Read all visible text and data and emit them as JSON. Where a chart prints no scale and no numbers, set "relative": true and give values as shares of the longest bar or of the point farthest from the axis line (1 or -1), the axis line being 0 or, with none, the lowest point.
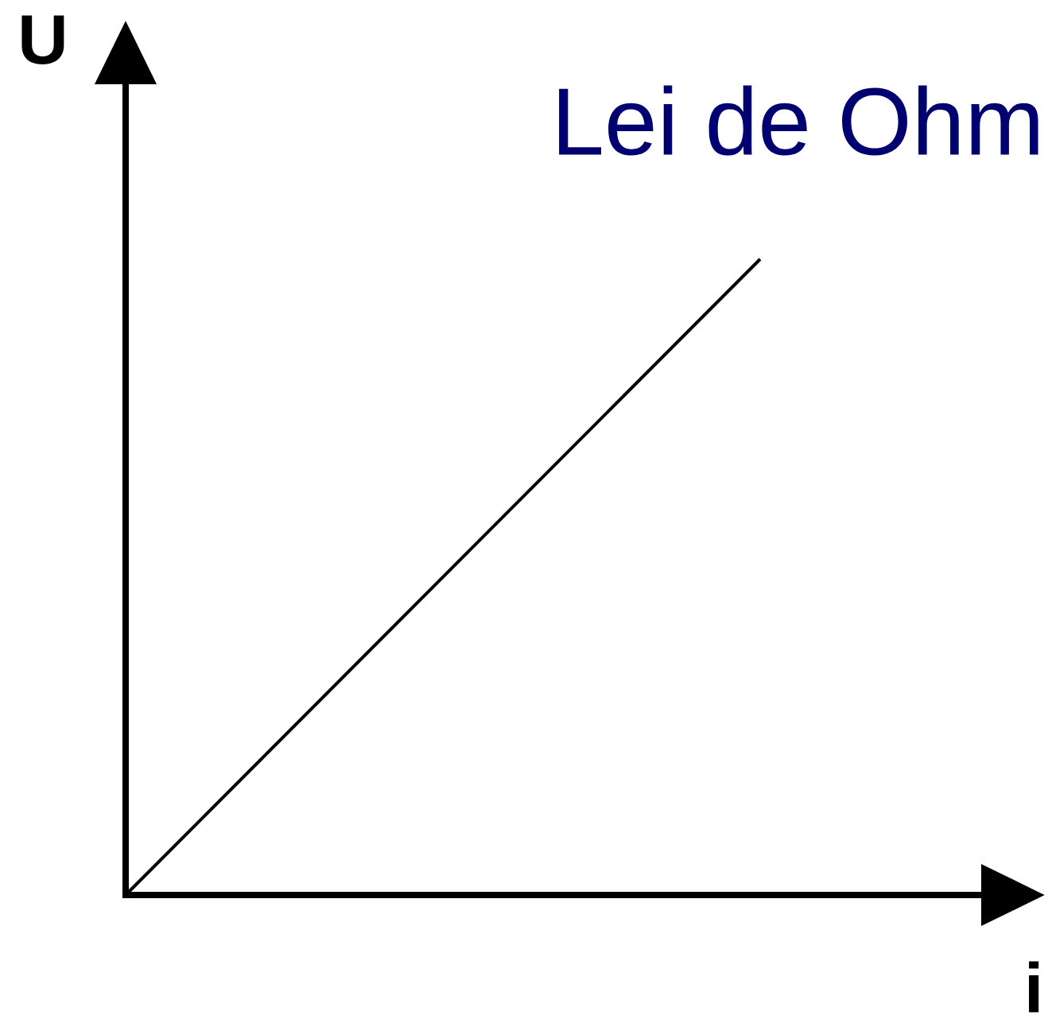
{
  "chart_data": {
    "type": "line",
    "title": "Lei de Ohm",
    "xlabel": "i",
    "ylabel": "U",
    "categories": [
      null,
      null
    ],
    "values": [
      0,
      1
    ],
    "color": "#000000",
    "relative": true
  }
}
